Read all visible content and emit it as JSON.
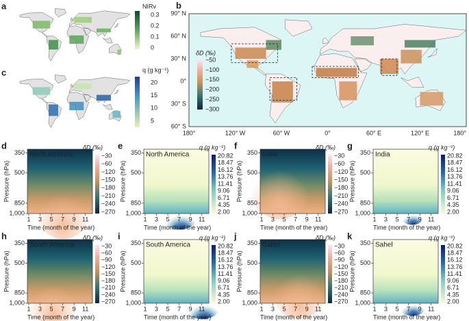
{
  "panels": {
    "a": {
      "letter": "a",
      "colorbar": {
        "label": "NIRv",
        "ticks": [
          "0.3",
          "0.2",
          "0.1",
          "0"
        ]
      }
    },
    "b": {
      "letter": "b",
      "lat_ticks": [
        "90° N",
        "60° N",
        "30° N",
        "0°",
        "30° S",
        "60° S"
      ],
      "lon_ticks": [
        "180°",
        "120° W",
        "60° W",
        "0°",
        "60° E",
        "120° E",
        "180°"
      ],
      "colorbar": {
        "label": "δD (‰)",
        "ticks": [
          "−50",
          "−100",
          "−150",
          "−200",
          "−250",
          "−300"
        ]
      }
    },
    "c": {
      "letter": "c",
      "colorbar": {
        "label": "q (g kg⁻¹)",
        "ticks": [
          "20",
          "15",
          "10",
          "5"
        ]
      }
    }
  },
  "profiles": {
    "y_label": "Pressure (hPa)",
    "x_label": "Time (month of the year)",
    "pressure_ticks": [
      "350",
      "500",
      "850",
      "1,000"
    ],
    "month_ticks": [
      "1",
      "3",
      "5",
      "7",
      "9",
      "11"
    ],
    "panels": [
      {
        "letter": "d",
        "title": "North America",
        "colorbar_label": "δD (‰)",
        "colorbar_ticks": [
          "−30",
          "−60",
          "−120",
          "−150",
          "−180",
          "−210",
          "−240",
          "−270"
        ]
      },
      {
        "letter": "e",
        "title": "North America",
        "colorbar_label": "q (g kg⁻¹)",
        "colorbar_ticks": [
          "20.82",
          "18.47",
          "16.12",
          "13.76",
          "11.41",
          "9.06",
          "6.71",
          "4.35",
          "2.00"
        ]
      },
      {
        "letter": "f",
        "title": "India",
        "colorbar_label": "δD (‰)",
        "colorbar_ticks": [
          "−30",
          "−60",
          "−120",
          "−150",
          "−180",
          "−210",
          "−240",
          "−270"
        ]
      },
      {
        "letter": "g",
        "title": "India",
        "colorbar_label": "q (g kg⁻¹)",
        "colorbar_ticks": [
          "20.82",
          "18.47",
          "16.12",
          "13.76",
          "11.41",
          "9.06",
          "6.71",
          "4.35",
          "2.00"
        ]
      },
      {
        "letter": "h",
        "title": "South America",
        "colorbar_label": "δD (‰)",
        "colorbar_ticks": [
          "−30",
          "−60",
          "−90",
          "−120",
          "−150",
          "−180",
          "−210",
          "−240",
          "−270"
        ]
      },
      {
        "letter": "i",
        "title": "South America",
        "colorbar_label": "q (g kg⁻¹)",
        "colorbar_ticks": [
          "20.82",
          "18.47",
          "16.12",
          "13.76",
          "11.41",
          "9.06",
          "6.71",
          "4.35",
          "2.00"
        ]
      },
      {
        "letter": "j",
        "title": "Sahel",
        "colorbar_label": "δD (‰)",
        "colorbar_ticks": [
          "−30",
          "−60",
          "−90",
          "−120",
          "−150",
          "−180",
          "−210",
          "−240",
          "−270"
        ]
      },
      {
        "letter": "k",
        "title": "Sahel",
        "colorbar_label": "q (g kg⁻¹)",
        "colorbar_ticks": [
          "20.82",
          "18.47",
          "16.12",
          "13.76",
          "11.41",
          "9.06",
          "6.71",
          "4.35",
          "2.00"
        ]
      }
    ]
  }
}
